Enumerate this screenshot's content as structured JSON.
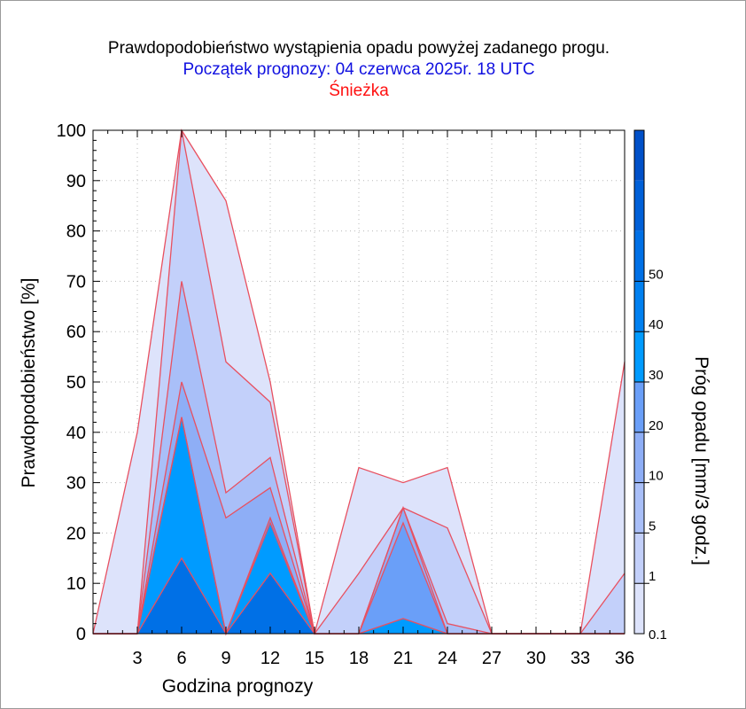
{
  "chart_data": {
    "type": "area",
    "title": "Prawdopodobieństwo wystąpienia opadu powyżej zadanego progu.",
    "subtitle": "Początek prognozy: 04 czerwca 2025r. 18 UTC",
    "location": "Śnieżka",
    "xlabel": "Godzina prognozy",
    "ylabel": "Prawdopodobieństwo [%]",
    "colorbar_label": "Próg opadu [mm/3 godz.]",
    "xlim": [
      0,
      36
    ],
    "ylim": [
      0,
      100
    ],
    "x_ticks": [
      3,
      6,
      9,
      12,
      15,
      18,
      21,
      24,
      27,
      30,
      33,
      36
    ],
    "y_ticks": [
      0,
      10,
      20,
      30,
      40,
      50,
      60,
      70,
      80,
      90,
      100
    ],
    "x": [
      0,
      3,
      6,
      9,
      12,
      15,
      18,
      21,
      24,
      27,
      30,
      33,
      36
    ],
    "colorbar_levels": [
      0.1,
      1,
      5,
      10,
      20,
      30,
      40,
      50
    ],
    "colorbar_ticks": [
      "0.1",
      "1",
      "5",
      "10",
      "20",
      "30",
      "40",
      "50"
    ],
    "colorbar_colors": [
      "#dde3fb",
      "#c3d0fa",
      "#a9bff8",
      "#8eaef6",
      "#6a9ff8",
      "#009bff",
      "#0080f0",
      "#0070e6",
      "#0060d8",
      "#0050c8"
    ],
    "series": [
      {
        "name": "0.1",
        "color": "#dde3fb",
        "values": [
          0,
          40,
          100,
          86,
          50,
          0,
          33,
          30,
          33,
          0,
          0,
          0,
          54
        ]
      },
      {
        "name": "1",
        "color": "#c3d0fa",
        "values": [
          0,
          0,
          100,
          54,
          46,
          0,
          12,
          25,
          21,
          0,
          0,
          0,
          12
        ]
      },
      {
        "name": "5",
        "color": "#a9bff8",
        "values": [
          0,
          0,
          70,
          28,
          35,
          0,
          0,
          25,
          2,
          0,
          0,
          0,
          0
        ]
      },
      {
        "name": "10",
        "color": "#8eaef6",
        "values": [
          0,
          0,
          50,
          23,
          29,
          0,
          0,
          25,
          0,
          0,
          0,
          0,
          0
        ]
      },
      {
        "name": "20",
        "color": "#6a9ff8",
        "values": [
          0,
          0,
          43,
          0,
          23,
          0,
          0,
          22,
          0,
          0,
          0,
          0,
          0
        ]
      },
      {
        "name": "30",
        "color": "#009bff",
        "values": [
          0,
          0,
          43,
          0,
          22,
          0,
          0,
          3,
          0,
          0,
          0,
          0,
          0
        ]
      },
      {
        "name": "40",
        "color": "#0070e6",
        "values": [
          0,
          0,
          15,
          0,
          12,
          0,
          0,
          0,
          0,
          0,
          0,
          0,
          0
        ]
      }
    ],
    "outline_color": "#e85060",
    "grid": true
  }
}
